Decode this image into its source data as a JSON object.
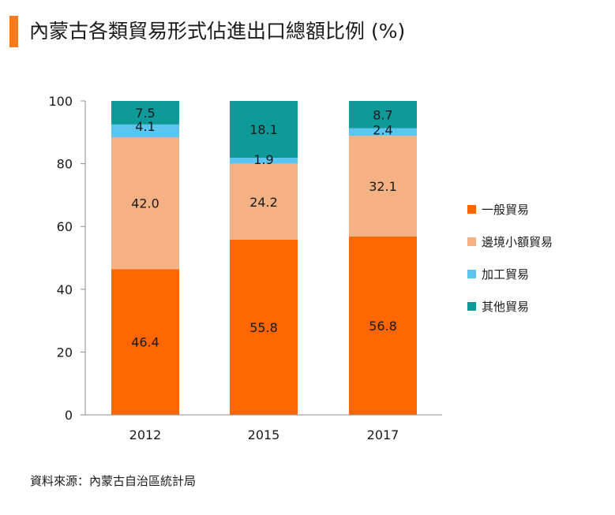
{
  "title": "內蒙古各類貿易形式佔進出口總額比例 (%)",
  "source": "資料來源：內蒙古自治區統計局",
  "chart_data": {
    "type": "bar",
    "stacked": true,
    "title": "內蒙古各類貿易形式佔進出口總額比例 (%)",
    "categories": [
      "2012",
      "2015",
      "2017"
    ],
    "series": [
      {
        "name": "一般貿易",
        "values": [
          46.4,
          55.8,
          56.8
        ],
        "color": "#ff6600"
      },
      {
        "name": "邊境小額貿易",
        "values": [
          42.0,
          24.2,
          32.1
        ],
        "color": "#f4b183"
      },
      {
        "name": "加工貿易",
        "values": [
          4.1,
          1.9,
          2.4
        ],
        "color": "#5bc5f2"
      },
      {
        "name": "其他貿易",
        "values": [
          7.5,
          18.1,
          8.7
        ],
        "color": "#0e9a98"
      }
    ],
    "data_labels": [
      [
        "46.4",
        "55.8",
        "56.8"
      ],
      [
        "42.0",
        "24.2",
        "32.1"
      ],
      [
        "4.1",
        "1.9",
        "2.4"
      ],
      [
        "7.5",
        "18.1",
        "8.7"
      ]
    ],
    "yticks": [
      "0",
      "20",
      "40",
      "60",
      "80",
      "100"
    ],
    "ylim": [
      0,
      100
    ],
    "grid": false,
    "legend_position": "right",
    "xlabel": "",
    "ylabel": ""
  }
}
